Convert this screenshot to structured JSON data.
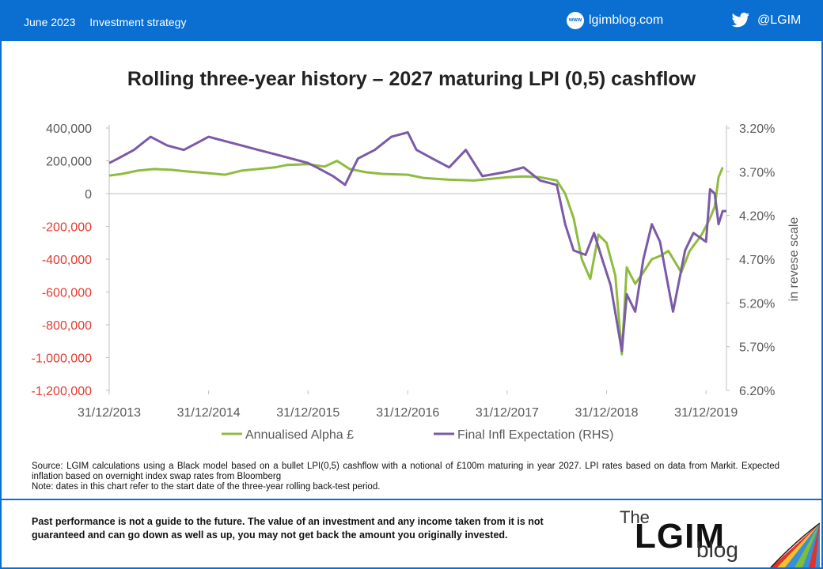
{
  "header": {
    "date": "June 2023",
    "category": "Investment strategy",
    "www_icon_text": "www",
    "blog_url": "lgimblog.com",
    "twitter_handle": "@LGIM"
  },
  "title": "Rolling three-year history – 2027 maturing LPI (0,5) cashflow",
  "colors": {
    "header_bg": "#0a6fd1",
    "alpha_series": "#8fbc3f",
    "expectation_series": "#7b5aa6",
    "negative_tick": "#e23b2f"
  },
  "chart_data": {
    "type": "line",
    "x_ticks": [
      "31/12/2013",
      "31/12/2014",
      "31/12/2015",
      "31/12/2016",
      "31/12/2017",
      "31/12/2018",
      "31/12/2019"
    ],
    "xlim": [
      "2013-12-31",
      "2020-03-15"
    ],
    "y_left": {
      "ticks": [
        "400,000",
        "200,000",
        "0",
        "-200,000",
        "-400,000",
        "-600,000",
        "-800,000",
        "-1,000,000",
        "-1,200,000"
      ],
      "ylim": [
        -1200000,
        400000
      ]
    },
    "y_right": {
      "label": "in revese scale",
      "ticks": [
        "3.20%",
        "3.70%",
        "4.20%",
        "4.70%",
        "5.20%",
        "5.70%",
        "6.20%"
      ],
      "ylim": [
        3.2,
        6.2
      ],
      "reversed": true
    },
    "legend_position": "bottom",
    "series": [
      {
        "name": "Annualised Alpha £",
        "axis": "left",
        "points": [
          [
            "2013-12-31",
            110000
          ],
          [
            "2014-02-15",
            120000
          ],
          [
            "2014-04-15",
            140000
          ],
          [
            "2014-06-15",
            150000
          ],
          [
            "2014-08-15",
            145000
          ],
          [
            "2014-10-15",
            135000
          ],
          [
            "2014-12-31",
            125000
          ],
          [
            "2015-03-01",
            115000
          ],
          [
            "2015-05-01",
            140000
          ],
          [
            "2015-07-01",
            150000
          ],
          [
            "2015-09-01",
            160000
          ],
          [
            "2015-10-15",
            175000
          ],
          [
            "2015-12-31",
            180000
          ],
          [
            "2016-03-01",
            165000
          ],
          [
            "2016-04-15",
            200000
          ],
          [
            "2016-06-01",
            150000
          ],
          [
            "2016-08-01",
            130000
          ],
          [
            "2016-10-01",
            120000
          ],
          [
            "2016-12-31",
            115000
          ],
          [
            "2017-03-01",
            95000
          ],
          [
            "2017-06-01",
            85000
          ],
          [
            "2017-09-01",
            80000
          ],
          [
            "2017-12-31",
            100000
          ],
          [
            "2018-03-01",
            105000
          ],
          [
            "2018-05-01",
            100000
          ],
          [
            "2018-07-01",
            80000
          ],
          [
            "2018-08-01",
            0
          ],
          [
            "2018-09-01",
            -150000
          ],
          [
            "2018-10-01",
            -400000
          ],
          [
            "2018-11-01",
            -520000
          ],
          [
            "2018-12-01",
            -250000
          ],
          [
            "2018-12-31",
            -300000
          ],
          [
            "2019-02-01",
            -500000
          ],
          [
            "2019-02-25",
            -980000
          ],
          [
            "2019-03-15",
            -450000
          ],
          [
            "2019-04-15",
            -550000
          ],
          [
            "2019-05-15",
            -480000
          ],
          [
            "2019-06-15",
            -400000
          ],
          [
            "2019-07-15",
            -380000
          ],
          [
            "2019-08-15",
            -350000
          ],
          [
            "2019-10-01",
            -480000
          ],
          [
            "2019-11-01",
            -350000
          ],
          [
            "2019-12-15",
            -250000
          ],
          [
            "2020-01-15",
            -150000
          ],
          [
            "2020-02-01",
            -80000
          ],
          [
            "2020-02-15",
            100000
          ],
          [
            "2020-03-01",
            160000
          ]
        ]
      },
      {
        "name": "Final Infl Expectation (RHS)",
        "axis": "right",
        "points": [
          [
            "2013-12-31",
            3.6
          ],
          [
            "2014-02-01",
            3.55
          ],
          [
            "2014-04-01",
            3.45
          ],
          [
            "2014-06-01",
            3.3
          ],
          [
            "2014-08-01",
            3.4
          ],
          [
            "2014-10-01",
            3.45
          ],
          [
            "2014-12-31",
            3.3
          ],
          [
            "2015-03-01",
            3.35
          ],
          [
            "2015-05-01",
            3.4
          ],
          [
            "2015-07-01",
            3.45
          ],
          [
            "2015-09-01",
            3.5
          ],
          [
            "2015-12-31",
            3.6
          ],
          [
            "2016-02-01",
            3.65
          ],
          [
            "2016-04-01",
            3.75
          ],
          [
            "2016-05-15",
            3.85
          ],
          [
            "2016-07-01",
            3.55
          ],
          [
            "2016-09-01",
            3.45
          ],
          [
            "2016-11-01",
            3.3
          ],
          [
            "2016-12-31",
            3.25
          ],
          [
            "2017-02-01",
            3.45
          ],
          [
            "2017-04-01",
            3.55
          ],
          [
            "2017-06-01",
            3.65
          ],
          [
            "2017-08-01",
            3.45
          ],
          [
            "2017-10-01",
            3.75
          ],
          [
            "2017-12-31",
            3.7
          ],
          [
            "2018-03-01",
            3.65
          ],
          [
            "2018-05-01",
            3.8
          ],
          [
            "2018-07-01",
            3.85
          ],
          [
            "2018-08-01",
            4.3
          ],
          [
            "2018-09-01",
            4.6
          ],
          [
            "2018-10-15",
            4.65
          ],
          [
            "2018-11-15",
            4.4
          ],
          [
            "2018-12-15",
            4.7
          ],
          [
            "2019-01-15",
            5.0
          ],
          [
            "2019-02-25",
            5.75
          ],
          [
            "2019-03-15",
            5.1
          ],
          [
            "2019-04-15",
            5.3
          ],
          [
            "2019-05-15",
            4.7
          ],
          [
            "2019-06-15",
            4.3
          ],
          [
            "2019-07-15",
            4.5
          ],
          [
            "2019-09-01",
            5.3
          ],
          [
            "2019-10-15",
            4.6
          ],
          [
            "2019-11-15",
            4.4
          ],
          [
            "2019-12-31",
            4.5
          ],
          [
            "2020-01-15",
            3.9
          ],
          [
            "2020-02-01",
            3.95
          ],
          [
            "2020-02-15",
            4.3
          ],
          [
            "2020-03-01",
            4.15
          ],
          [
            "2020-03-15",
            4.15
          ]
        ]
      }
    ]
  },
  "source": "Source: LGIM calculations using a Black model based on a bullet LPI(0,5) cashflow with a notional of £100m maturing in year 2027. LPI rates based on data from Markit. Expected inflation based on overnight index swap rates from Bloomberg",
  "note": "Note: dates in this chart refer to the start date of the three-year rolling back-test period.",
  "disclaimer": "Past performance is not a guide to the future. The value of an investment and any income taken from it is not guaranteed and can go down as well as up, you may not get back the amount you originally invested.",
  "logo": {
    "the": "The",
    "name": "LGIM",
    "blog": "blog"
  }
}
